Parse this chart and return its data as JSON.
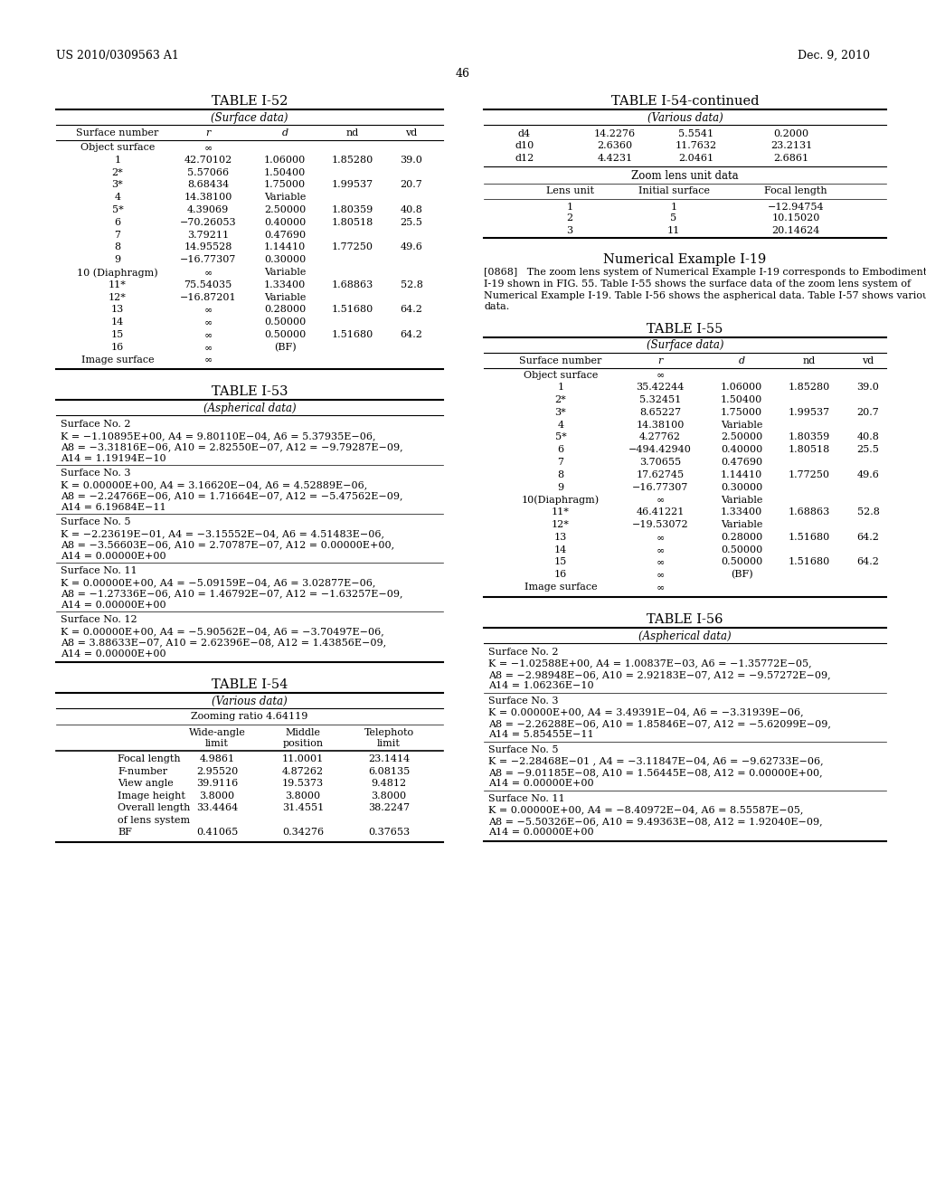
{
  "page_header_left": "US 2010/0309563 A1",
  "page_header_right": "Dec. 9, 2010",
  "page_number": "46",
  "background_color": "#ffffff",
  "table_i52": {
    "title": "TABLE I-52",
    "subtitle": "(Surface data)",
    "rows": [
      [
        "Object surface",
        "∞",
        "",
        "",
        ""
      ],
      [
        "1",
        "42.70102",
        "1.06000",
        "1.85280",
        "39.0"
      ],
      [
        "2*",
        "5.57066",
        "1.50400",
        "",
        ""
      ],
      [
        "3*",
        "8.68434",
        "1.75000",
        "1.99537",
        "20.7"
      ],
      [
        "4",
        "14.38100",
        "Variable",
        "",
        ""
      ],
      [
        "5*",
        "4.39069",
        "2.50000",
        "1.80359",
        "40.8"
      ],
      [
        "6",
        "−70.26053",
        "0.40000",
        "1.80518",
        "25.5"
      ],
      [
        "7",
        "3.79211",
        "0.47690",
        "",
        ""
      ],
      [
        "8",
        "14.95528",
        "1.14410",
        "1.77250",
        "49.6"
      ],
      [
        "9",
        "−16.77307",
        "0.30000",
        "",
        ""
      ],
      [
        "10 (Diaphragm)",
        "∞",
        "Variable",
        "",
        ""
      ],
      [
        "11*",
        "75.54035",
        "1.33400",
        "1.68863",
        "52.8"
      ],
      [
        "12*",
        "−16.87201",
        "Variable",
        "",
        ""
      ],
      [
        "13",
        "∞",
        "0.28000",
        "1.51680",
        "64.2"
      ],
      [
        "14",
        "∞",
        "0.50000",
        "",
        ""
      ],
      [
        "15",
        "∞",
        "0.50000",
        "1.51680",
        "64.2"
      ],
      [
        "16",
        "∞",
        "(BF)",
        "",
        ""
      ],
      [
        "Image surface",
        "∞",
        "",
        "",
        ""
      ]
    ]
  },
  "table_i53": {
    "title": "TABLE I-53",
    "subtitle": "(Aspherical data)",
    "blocks": [
      {
        "header": "Surface No. 2",
        "lines": [
          "K = −1.10895E+00, A4 = 9.80110E−04, A6 = 5.37935E−06,",
          "A8 = −3.31816E−06, A10 = 2.82550E−07, A12 = −9.79287E−09,",
          "A14 = 1.19194E−10"
        ]
      },
      {
        "header": "Surface No. 3",
        "lines": [
          "K = 0.00000E+00, A4 = 3.16620E−04, A6 = 4.52889E−06,",
          "A8 = −2.24766E−06, A10 = 1.71664E−07, A12 = −5.47562E−09,",
          "A14 = 6.19684E−11"
        ]
      },
      {
        "header": "Surface No. 5",
        "lines": [
          "K = −2.23619E−01, A4 = −3.15552E−04, A6 = 4.51483E−06,",
          "A8 = −3.56603E−06, A10 = 2.70787E−07, A12 = 0.00000E+00,",
          "A14 = 0.00000E+00"
        ]
      },
      {
        "header": "Surface No. 11",
        "lines": [
          "K = 0.00000E+00, A4 = −5.09159E−04, A6 = 3.02877E−06,",
          "A8 = −1.27336E−06, A10 = 1.46792E−07, A12 = −1.63257E−09,",
          "A14 = 0.00000E+00"
        ]
      },
      {
        "header": "Surface No. 12",
        "lines": [
          "K = 0.00000E+00, A4 = −5.90562E−04, A6 = −3.70497E−06,",
          "A8 = 3.88633E−07, A10 = 2.62396E−08, A12 = 1.43856E−09,",
          "A14 = 0.00000E+00"
        ]
      }
    ]
  },
  "table_i54": {
    "title": "TABLE I-54",
    "subtitle": "(Various data)",
    "zoom_ratio": "Zooming ratio 4.64119",
    "rows": [
      [
        "Focal length",
        "4.9861",
        "11.0001",
        "23.1414"
      ],
      [
        "F-number",
        "2.95520",
        "4.87262",
        "6.08135"
      ],
      [
        "View angle",
        "39.9116",
        "19.5373",
        "9.4812"
      ],
      [
        "Image height",
        "3.8000",
        "3.8000",
        "3.8000"
      ],
      [
        "Overall length",
        "33.4464",
        "31.4551",
        "38.2247"
      ],
      [
        "of lens system",
        "",
        "",
        ""
      ],
      [
        "BF",
        "0.41065",
        "0.34276",
        "0.37653"
      ]
    ]
  },
  "table_i54_cont": {
    "title": "TABLE I-54-continued",
    "subtitle": "(Various data)",
    "rows_cont": [
      [
        "d4",
        "14.2276",
        "5.5541",
        "0.2000"
      ],
      [
        "d10",
        "2.6360",
        "11.7632",
        "23.2131"
      ],
      [
        "d12",
        "4.4231",
        "2.0461",
        "2.6861"
      ]
    ],
    "zoom_lens_title": "Zoom lens unit data",
    "zoom_cols": [
      "Lens unit",
      "Initial surface",
      "Focal length"
    ],
    "zoom_rows": [
      [
        "1",
        "1",
        "−12.94754"
      ],
      [
        "2",
        "5",
        "10.15020"
      ],
      [
        "3",
        "11",
        "20.14624"
      ]
    ]
  },
  "numerical_example": {
    "title": "Numerical Example I-19",
    "paragraph_parts": [
      "[0868]",
      "   The zoom lens system of Numerical Example I-19 corresponds to Embodiment I-19 shown in FIG. 55. Table I-55 shows the surface data of the zoom lens system of Numerical Example I-19. Table I-56 shows the aspherical data. Table I-57 shows various data."
    ]
  },
  "table_i55": {
    "title": "TABLE I-55",
    "subtitle": "(Surface data)",
    "rows": [
      [
        "Object surface",
        "∞",
        "",
        "",
        ""
      ],
      [
        "1",
        "35.42244",
        "1.06000",
        "1.85280",
        "39.0"
      ],
      [
        "2*",
        "5.32451",
        "1.50400",
        "",
        ""
      ],
      [
        "3*",
        "8.65227",
        "1.75000",
        "1.99537",
        "20.7"
      ],
      [
        "4",
        "14.38100",
        "Variable",
        "",
        ""
      ],
      [
        "5*",
        "4.27762",
        "2.50000",
        "1.80359",
        "40.8"
      ],
      [
        "6",
        "−494.42940",
        "0.40000",
        "1.80518",
        "25.5"
      ],
      [
        "7",
        "3.70655",
        "0.47690",
        "",
        ""
      ],
      [
        "8",
        "17.62745",
        "1.14410",
        "1.77250",
        "49.6"
      ],
      [
        "9",
        "−16.77307",
        "0.30000",
        "",
        ""
      ],
      [
        "10(Diaphragm)",
        "∞",
        "Variable",
        "",
        ""
      ],
      [
        "11*",
        "46.41221",
        "1.33400",
        "1.68863",
        "52.8"
      ],
      [
        "12*",
        "−19.53072",
        "Variable",
        "",
        ""
      ],
      [
        "13",
        "∞",
        "0.28000",
        "1.51680",
        "64.2"
      ],
      [
        "14",
        "∞",
        "0.50000",
        "",
        ""
      ],
      [
        "15",
        "∞",
        "0.50000",
        "1.51680",
        "64.2"
      ],
      [
        "16",
        "∞",
        "(BF)",
        "",
        ""
      ],
      [
        "Image surface",
        "∞",
        "",
        "",
        ""
      ]
    ]
  },
  "table_i56": {
    "title": "TABLE I-56",
    "subtitle": "(Aspherical data)",
    "blocks": [
      {
        "header": "Surface No. 2",
        "lines": [
          "K = −1.02588E+00, A4 = 1.00837E−03, A6 = −1.35772E−05,",
          "A8 = −2.98948E−06, A10 = 2.92183E−07, A12 = −9.57272E−09,",
          "A14 = 1.06236E−10"
        ]
      },
      {
        "header": "Surface No. 3",
        "lines": [
          "K = 0.00000E+00, A4 = 3.49391E−04, A6 = −3.31939E−06,",
          "A8 = −2.26288E−06, A10 = 1.85846E−07, A12 = −5.62099E−09,",
          "A14 = 5.85455E−11"
        ]
      },
      {
        "header": "Surface No. 5",
        "lines": [
          "K = −2.28468E−01 , A4 = −3.11847E−04, A6 = −9.62733E−06,",
          "A8 = −9.01185E−08, A10 = 1.56445E−08, A12 = 0.00000E+00,",
          "A14 = 0.00000E+00"
        ]
      },
      {
        "header": "Surface No. 11",
        "lines": [
          "K = 0.00000E+00, A4 = −8.40972E−04, A6 = 8.55587E−05,",
          "A8 = −5.50326E−06, A10 = 9.49363E−08, A12 = 1.92040E−09,",
          "A14 = 0.00000E+00"
        ]
      }
    ]
  }
}
